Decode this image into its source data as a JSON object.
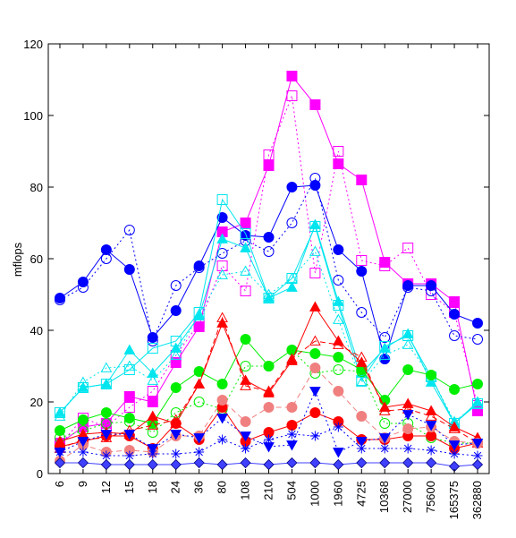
{
  "chart_data": {
    "type": "line",
    "title": "",
    "xlabel": "",
    "ylabel": "mflops",
    "ylim": [
      0,
      120
    ],
    "yticks": [
      0,
      20,
      40,
      60,
      80,
      100,
      120
    ],
    "grid": false,
    "legend": "none",
    "categories": [
      "6",
      "9",
      "12",
      "15",
      "18",
      "24",
      "36",
      "80",
      "108",
      "210",
      "504",
      "1000",
      "1960",
      "4725",
      "10368",
      "27000",
      "75600",
      "165375",
      "362880"
    ],
    "series": [
      {
        "color": "#ff00ff",
        "marker": "square-filled",
        "line": "solid",
        "values": [
          8.5,
          13,
          14,
          21.5,
          20,
          31,
          41,
          67.5,
          70,
          86,
          111,
          103,
          86.5,
          82,
          59,
          53,
          53,
          48,
          17.5
        ]
      },
      {
        "color": "#ff00ff",
        "marker": "square-open",
        "line": "dotted",
        "values": [
          8,
          15.5,
          13,
          18.5,
          23,
          33,
          42,
          58,
          51,
          89,
          105.5,
          56,
          90,
          59.5,
          58,
          63,
          50,
          45,
          19
        ]
      },
      {
        "color": "#0000ff",
        "marker": "circle-filled",
        "line": "solid",
        "values": [
          49,
          53.5,
          62.5,
          57,
          38,
          45.5,
          58,
          71.5,
          66.5,
          66,
          80,
          80.5,
          62.5,
          56.5,
          32,
          52.5,
          52.5,
          44.5,
          42
        ]
      },
      {
        "color": "#0000ff",
        "marker": "circle-open",
        "line": "dotted",
        "values": [
          48.5,
          52,
          60,
          68,
          37,
          52.5,
          57.5,
          61.5,
          65,
          62,
          70,
          82.5,
          54,
          45,
          38,
          52,
          51,
          38.5,
          37.5
        ]
      },
      {
        "color": "#00e5ee",
        "marker": "triangle-filled",
        "line": "solid",
        "values": [
          17,
          24,
          25,
          34.5,
          28,
          35,
          44,
          65.5,
          63,
          49,
          52,
          69.5,
          48,
          28,
          35,
          39,
          25.5,
          14,
          20
        ]
      },
      {
        "color": "#00e5ee",
        "marker": "square-open",
        "line": "solid",
        "values": [
          17,
          24,
          25,
          29,
          35,
          37,
          45,
          76.5,
          67,
          49,
          54.5,
          69,
          47,
          26,
          35.5,
          38.5,
          27,
          14,
          19.5
        ]
      },
      {
        "color": "#00e5ee",
        "marker": "triangle-open",
        "line": "dotted",
        "values": [
          16,
          25.5,
          29.5,
          30,
          26,
          33,
          44.5,
          55.5,
          56.5,
          50,
          54.5,
          62,
          43,
          25.5,
          33,
          36,
          27,
          14.5,
          19.5
        ]
      },
      {
        "color": "#00ee00",
        "marker": "circle-filled",
        "line": "solid",
        "values": [
          12,
          15,
          17,
          15.5,
          14,
          24,
          28.5,
          25,
          37.5,
          30,
          34.5,
          33.5,
          32.5,
          29,
          20.5,
          29,
          27.5,
          23.5,
          25
        ]
      },
      {
        "color": "#00ee00",
        "marker": "circle-open",
        "line": "dotted",
        "values": [
          10,
          12,
          14,
          14.5,
          11.5,
          17,
          20,
          18,
          30,
          30,
          34.5,
          28,
          29,
          28.5,
          14,
          14,
          10,
          8.5,
          8.5
        ]
      },
      {
        "color": "#ff0000",
        "marker": "triangle-filled",
        "line": "solid",
        "values": [
          9,
          11,
          11.5,
          11,
          16,
          14,
          25,
          42,
          26,
          22.5,
          31.5,
          46.5,
          37,
          31,
          18.5,
          19.5,
          17.5,
          13,
          10
        ]
      },
      {
        "color": "#ff0000",
        "marker": "triangle-open",
        "line": "dashed",
        "values": [
          7,
          9.5,
          10,
          12,
          13.5,
          15,
          25,
          43.5,
          24.5,
          23,
          32,
          37,
          36,
          32.5,
          17.5,
          18,
          16,
          12.5,
          8.5
        ]
      },
      {
        "color": "#ff0000",
        "marker": "circle-filled",
        "line": "solid",
        "values": [
          7.5,
          9,
          10.5,
          10.5,
          7,
          14,
          9.5,
          18.5,
          9,
          11.5,
          13.5,
          17,
          14.5,
          9.5,
          9.5,
          10.5,
          10.5,
          7,
          8.5
        ]
      },
      {
        "color": "#f08080",
        "marker": "circle-filled",
        "line": "dashed",
        "values": [
          3.5,
          8,
          6,
          6.5,
          6,
          10.5,
          10.5,
          20.5,
          14.5,
          18.5,
          18.5,
          29.5,
          23,
          16,
          10,
          12.5,
          13,
          9,
          8.5
        ]
      },
      {
        "color": "#0000ff",
        "marker": "triangle-down-filled",
        "line": "dotted",
        "values": [
          6,
          9,
          11,
          11,
          7,
          11,
          10,
          15.5,
          10.5,
          7.5,
          8,
          23,
          6,
          9,
          10,
          16.5,
          13.5,
          8,
          8.5
        ]
      },
      {
        "color": "#0000ff",
        "marker": "asterisk",
        "line": "dotted",
        "values": [
          6,
          6,
          5,
          5,
          5.5,
          5.5,
          6,
          9.5,
          7,
          9.5,
          11,
          10.5,
          13,
          7,
          7,
          7,
          6.5,
          5.5,
          5
        ]
      },
      {
        "color": "#4040ff",
        "marker": "diamond-filled",
        "line": "solid",
        "values": [
          3,
          3,
          2.5,
          2.5,
          2.5,
          2.5,
          3,
          2.5,
          3,
          2.5,
          3,
          3,
          2.5,
          3,
          3,
          3,
          3,
          2,
          2.5
        ]
      }
    ]
  }
}
